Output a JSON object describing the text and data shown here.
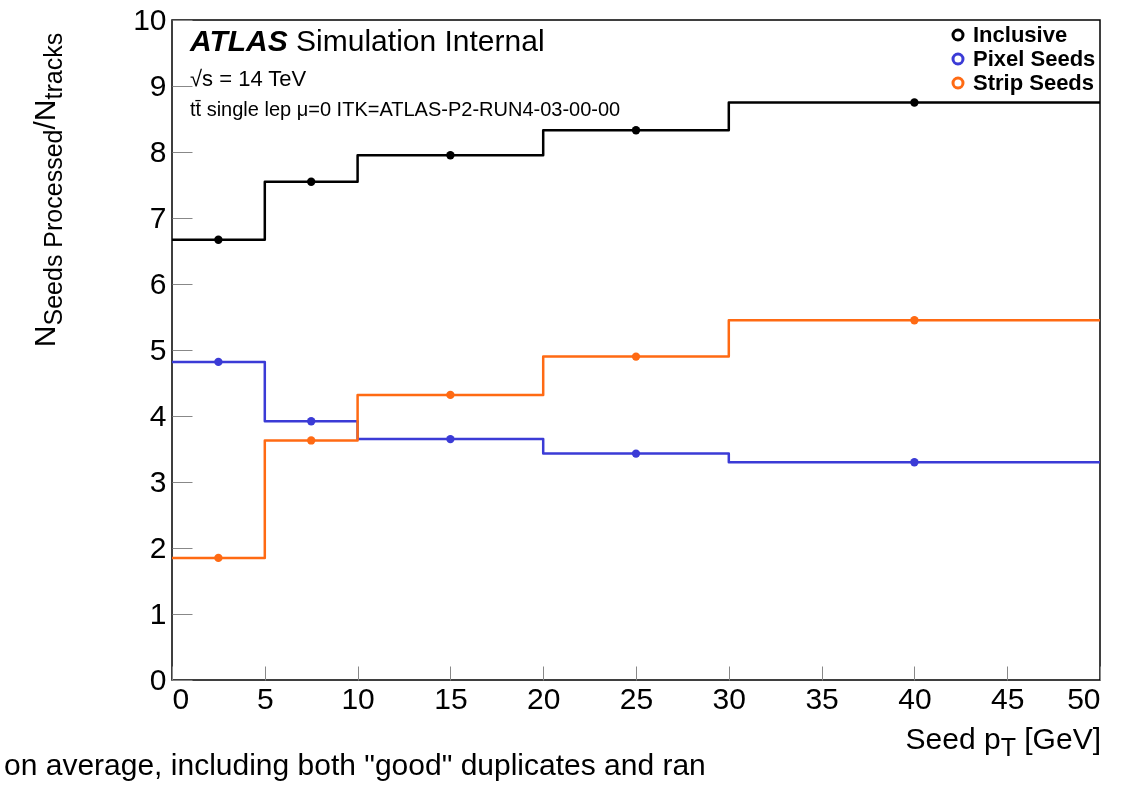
{
  "chart_data": {
    "type": "histogram",
    "bins": [
      0,
      5,
      10,
      20,
      30,
      50
    ],
    "series": [
      {
        "name": "Inclusive",
        "color": "#000000",
        "values": [
          6.67,
          7.55,
          7.95,
          8.33,
          8.75
        ]
      },
      {
        "name": "Pixel Seeds",
        "color": "#3b3bd6",
        "values": [
          4.82,
          3.92,
          3.65,
          3.43,
          3.3
        ]
      },
      {
        "name": "Strip Seeds",
        "color": "#ff6a13",
        "values": [
          1.85,
          3.63,
          4.32,
          4.9,
          5.45
        ]
      },
      {
        "type": "scatter",
        "color": "#000000",
        "x": [
          2.5,
          7.5,
          15,
          25,
          40
        ],
        "values": [
          6.67,
          7.55,
          7.95,
          8.33,
          8.75
        ]
      },
      {
        "type": "scatter",
        "color": "#3b3bd6",
        "x": [
          2.5,
          7.5,
          15,
          25,
          40
        ],
        "values": [
          4.82,
          3.92,
          3.65,
          3.43,
          3.3
        ]
      },
      {
        "type": "scatter",
        "color": "#ff6a13",
        "x": [
          2.5,
          7.5,
          15,
          25,
          40
        ],
        "values": [
          1.85,
          3.63,
          4.32,
          4.9,
          5.45
        ]
      }
    ],
    "xlim": [
      0,
      50
    ],
    "xticks": [
      0,
      5,
      10,
      15,
      20,
      25,
      30,
      35,
      40,
      45,
      50
    ],
    "ylim": [
      0,
      10
    ],
    "yticks": [
      0,
      1,
      2,
      3,
      4,
      5,
      6,
      7,
      8,
      9,
      10
    ],
    "xlabel": "Seed p$_{T}$ [GeV]",
    "ylabel": "N$_{Seeds Processed}$/N$_{tracks}$",
    "annotations": [
      "ATLAS Simulation Internal",
      "√s = 14 TeV",
      "tt̄ single lep μ=0 ITK=ATLAS-P2-RUN4-03-00-00",
      "on average, including both \"good\" duplicates and ran"
    ],
    "legend": "top right",
    "marker": "circle",
    "grid": false
  }
}
